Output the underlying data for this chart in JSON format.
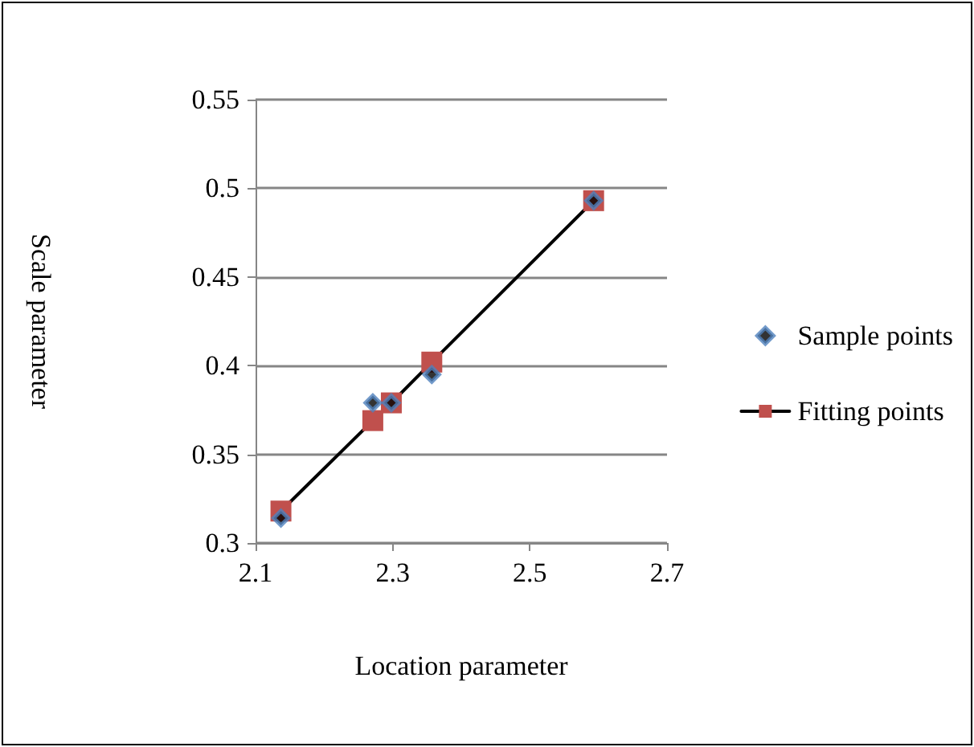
{
  "chart_data": {
    "type": "scatter",
    "xlabel": "Location parameter",
    "ylabel": "Scale parameter",
    "xlim": [
      2.1,
      2.7
    ],
    "xticks": [
      2.1,
      2.3,
      2.5,
      2.7
    ],
    "ylim": [
      0.3,
      0.55
    ],
    "yticks": [
      0.3,
      0.35,
      0.4,
      0.45,
      0.5,
      0.55
    ],
    "grid": "y",
    "legend": "right",
    "series": [
      {
        "name": "Sample points",
        "marker": "diamond",
        "color": "#4f81bd",
        "x": [
          2.137,
          2.271,
          2.298,
          2.357,
          2.593
        ],
        "values": [
          0.314,
          0.379,
          0.379,
          0.395,
          0.493
        ]
      },
      {
        "name": "Fitting points",
        "type": "line",
        "marker": "square",
        "line_style": "solid",
        "color": "#c0504d",
        "x": [
          2.137,
          2.271,
          2.298,
          2.357,
          2.593
        ],
        "values": [
          0.318,
          0.369,
          0.379,
          0.402,
          0.493
        ]
      }
    ]
  }
}
